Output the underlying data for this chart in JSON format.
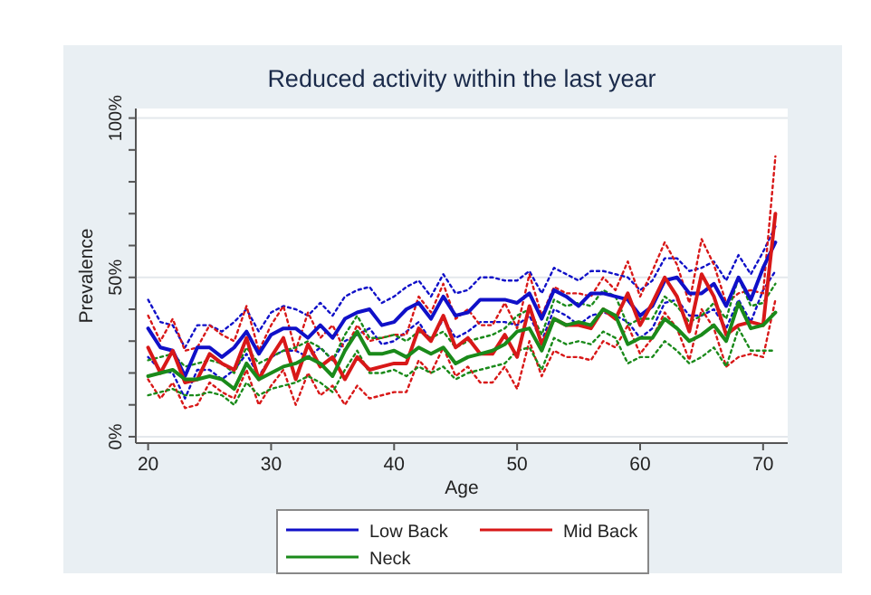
{
  "chart_data": {
    "type": "line",
    "title": "Reduced activity within the last year",
    "xlabel": "Age",
    "ylabel": "Prevalence",
    "x": [
      20,
      21,
      22,
      23,
      24,
      25,
      26,
      27,
      28,
      29,
      30,
      31,
      32,
      33,
      34,
      35,
      36,
      37,
      38,
      39,
      40,
      41,
      42,
      43,
      44,
      45,
      46,
      47,
      48,
      49,
      50,
      51,
      52,
      53,
      54,
      55,
      56,
      57,
      58,
      59,
      60,
      61,
      62,
      63,
      64,
      65,
      66,
      67,
      68,
      69,
      70,
      71
    ],
    "xlim": [
      19,
      72
    ],
    "xticks": [
      20,
      30,
      40,
      50,
      60,
      70
    ],
    "ylim": [
      -2,
      103
    ],
    "yticks": [
      {
        "value": 0,
        "label": "0%"
      },
      {
        "value": 10,
        "label": null
      },
      {
        "value": 20,
        "label": null
      },
      {
        "value": 30,
        "label": null
      },
      {
        "value": 40,
        "label": null
      },
      {
        "value": 50,
        "label": "50%"
      },
      {
        "value": 60,
        "label": null
      },
      {
        "value": 70,
        "label": null
      },
      {
        "value": 80,
        "label": null
      },
      {
        "value": 90,
        "label": null
      },
      {
        "value": 100,
        "label": "100%"
      }
    ],
    "grid": "y",
    "legend": "bottom",
    "line_style": "solid",
    "marker": "none",
    "series": [
      {
        "color": "#1010c8",
        "line_style": "dotted",
        "values": [
          43,
          36,
          35,
          28,
          35,
          35,
          33,
          36,
          40,
          33,
          39,
          41,
          40,
          38,
          42,
          38,
          44,
          46,
          47,
          42,
          44,
          47,
          49,
          44,
          51,
          45,
          46,
          50,
          50,
          49,
          49,
          52,
          45,
          53,
          51,
          49,
          52,
          52,
          51,
          50,
          46,
          49,
          56,
          56,
          52,
          53,
          55,
          49,
          57,
          51,
          58,
          66
        ]
      },
      {
        "color": "#1010c8",
        "line_style": "dotted",
        "values": [
          25,
          21,
          20,
          12,
          21,
          21,
          18,
          21,
          26,
          19,
          25,
          27,
          27,
          25,
          28,
          24,
          30,
          32,
          34,
          29,
          30,
          33,
          36,
          30,
          37,
          31,
          33,
          36,
          36,
          36,
          35,
          38,
          30,
          40,
          38,
          35,
          38,
          39,
          38,
          36,
          31,
          34,
          42,
          43,
          38,
          38,
          40,
          34,
          43,
          36,
          46,
          52
        ]
      },
      {
        "color": "#d81818",
        "line_style": "dotted",
        "values": [
          38,
          30,
          37,
          27,
          28,
          35,
          32,
          30,
          41,
          27,
          35,
          41,
          27,
          39,
          31,
          35,
          27,
          35,
          30,
          31,
          32,
          32,
          44,
          39,
          48,
          37,
          40,
          35,
          35,
          42,
          34,
          51,
          38,
          47,
          45,
          45,
          44,
          50,
          46,
          55,
          44,
          52,
          61,
          54,
          42,
          62,
          54,
          42,
          45,
          46,
          45,
          88
        ]
      },
      {
        "color": "#d81818",
        "line_style": "dotted",
        "values": [
          18,
          12,
          17,
          9,
          10,
          17,
          14,
          12,
          21,
          10,
          16,
          21,
          10,
          20,
          13,
          16,
          10,
          16,
          12,
          13,
          14,
          14,
          24,
          20,
          28,
          19,
          22,
          17,
          17,
          22,
          15,
          30,
          19,
          27,
          25,
          25,
          24,
          30,
          28,
          35,
          26,
          31,
          39,
          34,
          24,
          40,
          34,
          22,
          25,
          26,
          25,
          43
        ]
      },
      {
        "color": "#1a8a1a",
        "line_style": "dotted",
        "values": [
          24,
          25,
          26,
          22,
          23,
          24,
          23,
          20,
          28,
          23,
          25,
          27,
          28,
          30,
          28,
          24,
          32,
          38,
          31,
          31,
          32,
          30,
          33,
          31,
          33,
          28,
          30,
          31,
          32,
          34,
          38,
          40,
          32,
          43,
          41,
          42,
          41,
          46,
          44,
          35,
          37,
          37,
          44,
          41,
          36,
          38,
          42,
          37,
          50,
          41,
          42,
          48
        ]
      },
      {
        "color": "#1a8a1a",
        "line_style": "dotted",
        "values": [
          13,
          14,
          15,
          13,
          13,
          14,
          13,
          10,
          17,
          13,
          15,
          16,
          17,
          19,
          17,
          14,
          21,
          27,
          20,
          20,
          21,
          19,
          22,
          20,
          22,
          18,
          20,
          21,
          22,
          23,
          27,
          28,
          21,
          31,
          29,
          30,
          29,
          33,
          31,
          23,
          25,
          25,
          30,
          27,
          23,
          25,
          28,
          22,
          34,
          27,
          27,
          27
        ]
      },
      {
        "name": "Low Back",
        "color": "#1010c8",
        "values": [
          34,
          28,
          27,
          19,
          28,
          28,
          25,
          28,
          33,
          26,
          32,
          34,
          34,
          31,
          35,
          31,
          37,
          39,
          40,
          35,
          36,
          40,
          42,
          37,
          44,
          38,
          39,
          43,
          43,
          43,
          42,
          45,
          37,
          46,
          44,
          41,
          45,
          45,
          44,
          43,
          38,
          41,
          49,
          50,
          45,
          45,
          48,
          41,
          50,
          43,
          53,
          61
        ]
      },
      {
        "name": "Mid Back",
        "color": "#d81818",
        "values": [
          28,
          20,
          27,
          17,
          18,
          26,
          23,
          21,
          31,
          18,
          25,
          31,
          18,
          29,
          22,
          25,
          18,
          25,
          21,
          22,
          23,
          23,
          34,
          30,
          38,
          28,
          31,
          26,
          26,
          32,
          25,
          41,
          29,
          37,
          35,
          35,
          34,
          40,
          37,
          45,
          35,
          42,
          50,
          44,
          33,
          51,
          44,
          32,
          35,
          36,
          35,
          70
        ]
      },
      {
        "name": "Neck",
        "color": "#1a8a1a",
        "values": [
          19,
          20,
          21,
          18,
          18,
          19,
          18,
          15,
          23,
          18,
          20,
          22,
          23,
          25,
          23,
          19,
          27,
          33,
          26,
          26,
          27,
          25,
          28,
          26,
          28,
          23,
          25,
          26,
          27,
          29,
          33,
          34,
          27,
          37,
          35,
          36,
          35,
          40,
          38,
          29,
          31,
          31,
          37,
          34,
          30,
          32,
          35,
          30,
          42,
          34,
          35,
          39
        ]
      }
    ]
  }
}
